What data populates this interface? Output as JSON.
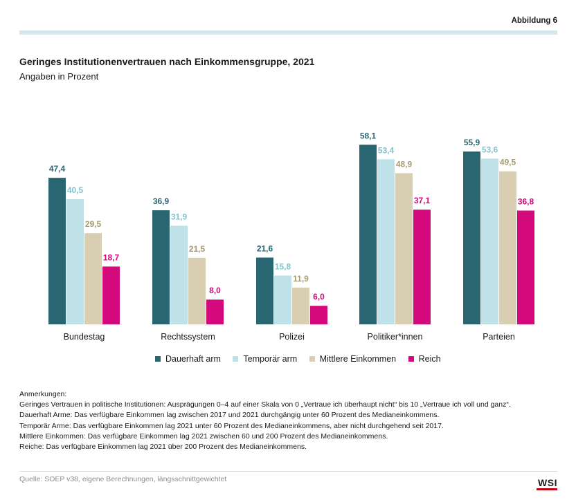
{
  "figure_label": "Abbildung 6",
  "title": "Geringes Institutionenvertrauen nach Einkommensgruppe, 2021",
  "subtitle": "Angaben in Prozent",
  "colors": {
    "dauerhaft_arm": "#2a6671",
    "temporaer_arm": "#bfe2e8",
    "mittlere_einkommen": "#d8ceb2",
    "reich": "#d4097c",
    "top_band": "#d6e6ee",
    "logo_bar": "#c4000f"
  },
  "chart_data": {
    "type": "bar",
    "title": "Geringes Institutionenvertrauen nach Einkommensgruppe, 2021",
    "ylabel": "Angaben in Prozent",
    "xlabel": "",
    "ylim": [
      0,
      65
    ],
    "grid": false,
    "categories": [
      "Bundestag",
      "Rechtssystem",
      "Polizei",
      "Politiker*innen",
      "Parteien"
    ],
    "series": [
      {
        "name": "Dauerhaft arm",
        "labels": [
          "47,4",
          "36,9",
          "21,6",
          "58,1",
          "55,9"
        ],
        "values": [
          47.4,
          36.9,
          21.6,
          58.1,
          55.9
        ],
        "color": "#2a6671",
        "label_color": "#2a6671"
      },
      {
        "name": "Temporär arm",
        "labels": [
          "40,5",
          "31,9",
          "15,8",
          "53,4",
          "53,6"
        ],
        "values": [
          40.5,
          31.9,
          15.8,
          53.4,
          53.6
        ],
        "color": "#bfe2e8",
        "label_color": "#7fc4d0"
      },
      {
        "name": "Mittlere Einkommen",
        "labels": [
          "29,5",
          "21,5",
          "11,9",
          "48,9",
          "49,5"
        ],
        "values": [
          29.5,
          21.5,
          11.9,
          48.9,
          49.5
        ],
        "color": "#d8ceb2",
        "label_color": "#a89a6e"
      },
      {
        "name": "Reich",
        "labels": [
          "18,7",
          "8,0",
          "6,0",
          "37,1",
          "36,8"
        ],
        "values": [
          18.7,
          8.0,
          6.0,
          37.1,
          36.8
        ],
        "color": "#d4097c",
        "label_color": "#d4097c"
      }
    ]
  },
  "notes": {
    "heading": "Anmerkungen:",
    "lines": [
      "Geringes Vertrauen in politische Institutionen: Ausprägungen 0–4 auf einer Skala von 0 „Vertraue ich überhaupt nicht“ bis 10 „Vertraue ich voll und ganz“.",
      "Dauerhaft Arme: Das verfügbare Einkommen lag zwischen 2017 und 2021 durchgängig unter 60 Prozent des Medianeinkommens.",
      "Temporär Arme: Das verfügbare Einkommen lag 2021 unter 60 Prozent des Medianeinkommens, aber nicht durchgehend seit 2017.",
      "Mittlere Einkommen: Das verfügbare Einkommen lag 2021 zwischen 60 und 200 Prozent des Medianeinkommens.",
      "Reiche: Das verfügbare Einkommen lag 2021 über 200 Prozent des Medianeinkommens."
    ]
  },
  "source": "Quelle: SOEP v38, eigene Berechnungen, längsschnittgewichtet",
  "logo_text": "WSI"
}
